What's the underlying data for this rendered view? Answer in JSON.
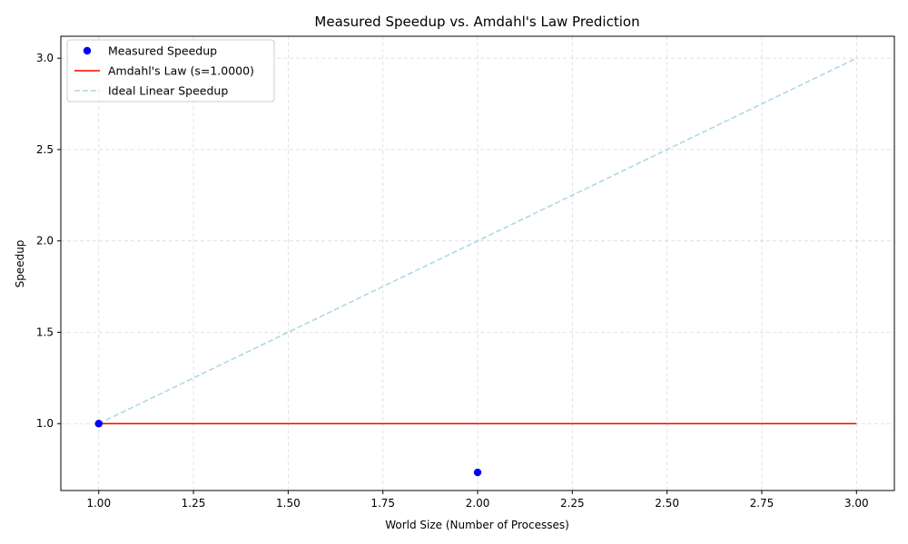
{
  "chart_data": {
    "type": "line",
    "title": "Measured Speedup vs. Amdahl's Law Prediction",
    "xlabel": "World Size (Number of Processes)",
    "ylabel": "Speedup",
    "xlim": [
      0.9,
      3.1
    ],
    "ylim": [
      0.634,
      3.12
    ],
    "xticks": [
      1.0,
      1.25,
      1.5,
      1.75,
      2.0,
      2.25,
      2.5,
      2.75,
      3.0
    ],
    "xtick_labels": [
      "1.00",
      "1.25",
      "1.50",
      "1.75",
      "2.00",
      "2.25",
      "2.50",
      "2.75",
      "3.00"
    ],
    "yticks": [
      1.0,
      1.5,
      2.0,
      2.5,
      3.0
    ],
    "ytick_labels": [
      "1.0",
      "1.5",
      "2.0",
      "2.5",
      "3.0"
    ],
    "grid": true,
    "legend_position": "top-left",
    "series": [
      {
        "name": "Measured Speedup",
        "style": "markers",
        "color": "#0000ff",
        "x": [
          1,
          2
        ],
        "y": [
          1.0,
          0.733
        ]
      },
      {
        "name": "Amdahl's Law (s=1.0000)",
        "style": "solid",
        "color": "#ff0000",
        "x": [
          1,
          3
        ],
        "y": [
          1.0,
          1.0
        ]
      },
      {
        "name": "Ideal Linear Speedup",
        "style": "dashed",
        "color": "#add8e6",
        "x": [
          1,
          3
        ],
        "y": [
          1.0,
          3.0
        ]
      }
    ]
  }
}
